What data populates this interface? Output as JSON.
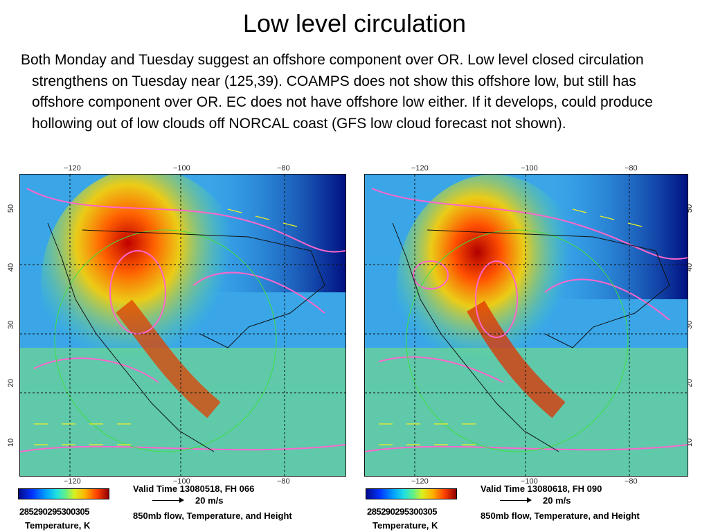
{
  "slide": {
    "title": "Low level circulation",
    "body": "Both Monday and Tuesday suggest an offshore component over OR.  Low level closed circulation strengthens on Tuesday near (125,39).  COAMPS does not show this offshore low, but still has offshore component over OR.  EC does not have offshore low either.  If it develops, could produce hollowing out of low clouds off NORCAL coast (GFS low cloud forecast not shown)."
  },
  "panels": [
    {
      "lon_top": [
        "−120",
        "−100",
        "−80"
      ],
      "lon_bottom": [
        "−120",
        "−100",
        "−80"
      ],
      "lat_left": [
        "50",
        "40",
        "30",
        "20",
        "10"
      ],
      "colorbar_ticks": "285290295300305",
      "colorbar_label": "Temperature, K",
      "valid_time": "Valid Time 13080518, FH 066",
      "wind_ref": "20 m/s",
      "field_desc": "850mb flow, Temperature, and Height"
    },
    {
      "lon_top": [
        "−120",
        "−100",
        "−80"
      ],
      "lon_bottom": [
        "−120",
        "−100",
        "−80"
      ],
      "lat_right": [
        "50",
        "40",
        "30",
        "20",
        "10"
      ],
      "colorbar_ticks": "285290295300305",
      "colorbar_label": "Temperature, K",
      "valid_time": "Valid Time 13080618, FH 090",
      "wind_ref": "20 m/s",
      "field_desc": "850mb flow, Temperature, and Height"
    }
  ],
  "colors": {
    "contour": "#ff66cc",
    "wind_vectors": "#f0f020",
    "circle": "#40e040"
  }
}
